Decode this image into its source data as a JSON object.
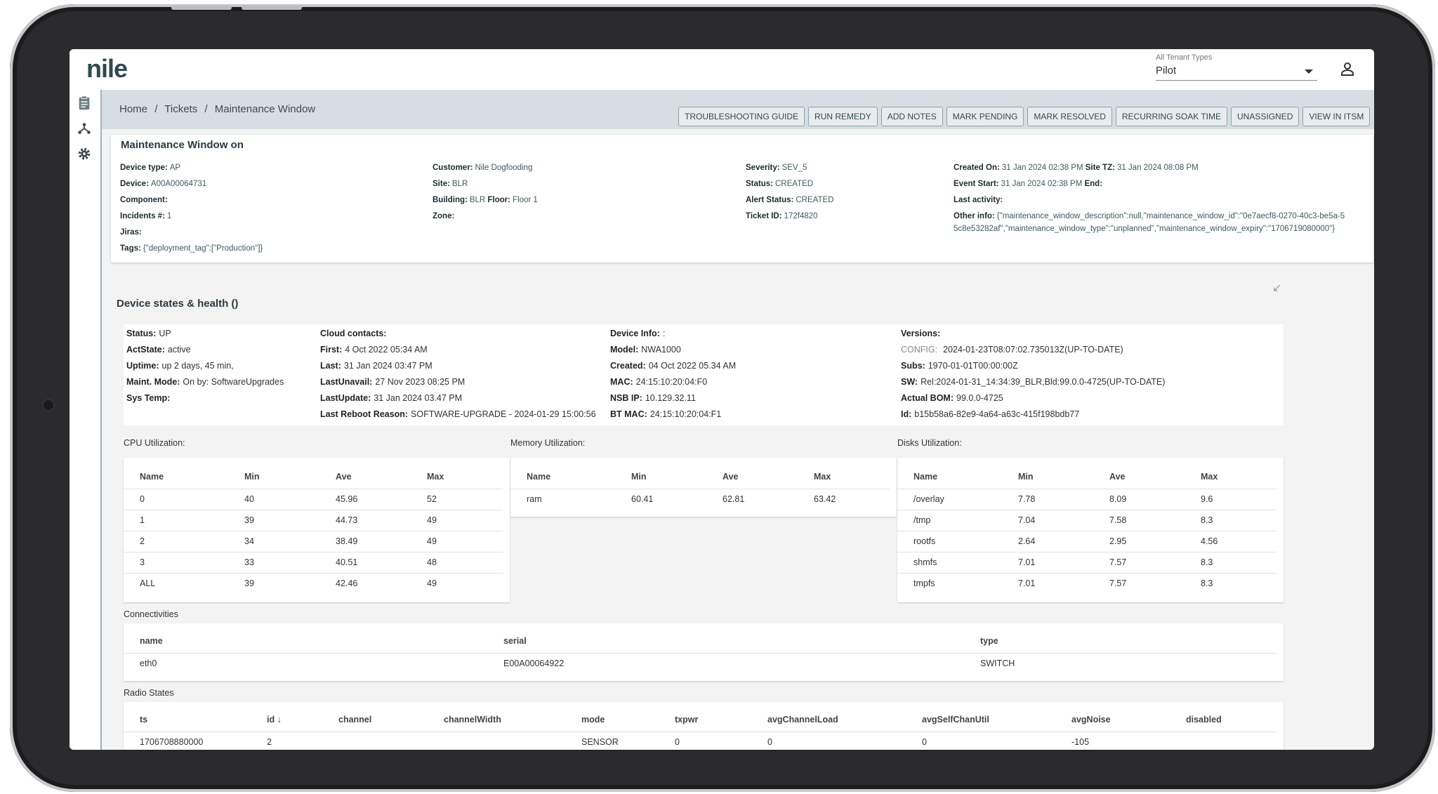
{
  "app": {
    "logo": "nile"
  },
  "tenant": {
    "label": "All Tenant Types",
    "value": "Pilot"
  },
  "breadcrumb": [
    "Home",
    "/",
    "Tickets",
    "/",
    "Maintenance Window"
  ],
  "actions": [
    "TROUBLESHOOTING GUIDE",
    "RUN REMEDY",
    "ADD NOTES",
    "MARK PENDING",
    "MARK RESOLVED",
    "RECURRING SOAK TIME",
    "UNASSIGNED",
    "VIEW IN ITSM"
  ],
  "ticket": {
    "title": "Maintenance Window on",
    "col1": [
      {
        "k": "Device type:",
        "v": "AP"
      },
      {
        "k": "Device:",
        "v": "A00A00064731"
      },
      {
        "k": "Component:",
        "v": ""
      },
      {
        "k": "Incidents #:",
        "v": "1"
      },
      {
        "k": "Jiras:",
        "v": ""
      },
      {
        "k": "Tags:",
        "v": "{\"deployment_tag\":[\"Production\"]}"
      }
    ],
    "col2": [
      {
        "k": "Customer:",
        "v": "Nile Dogfooding"
      },
      {
        "k": "Site:",
        "v": "BLR"
      },
      {
        "k": "Building:",
        "v": "BLR",
        "k2": "Floor:",
        "v2": "Floor 1"
      },
      {
        "k": "Zone:",
        "v": ""
      }
    ],
    "col3": [
      {
        "k": "Severity:",
        "v": "SEV_5"
      },
      {
        "k": "Status:",
        "v": "CREATED"
      },
      {
        "k": "Alert Status:",
        "v": "CREATED"
      },
      {
        "k": "Ticket ID:",
        "v": "172f4820"
      }
    ],
    "col4": [
      {
        "k": "Created On:",
        "v": "31 Jan 2024 02:38 PM",
        "k2": "Site TZ:",
        "v2": "31 Jan 2024 08:08 PM"
      },
      {
        "k": "Event Start:",
        "v": "31 Jan 2024 02:38 PM",
        "k2": "End:",
        "v2": ""
      },
      {
        "k": "Last activity:",
        "v": ""
      }
    ],
    "other_info_label": "Other info:",
    "other_info_line1": "{\"maintenance_window_description\":null,\"maintenance_window_id\":\"0e7aecf8-0270-40c3-be5a-5",
    "other_info_line2": "5c8e53282af\",\"maintenance_window_type\":\"unplanned\",\"maintenance_window_expiry\":\"1706719080000\"}"
  },
  "health": {
    "title": "Device states & health ()",
    "collapse_icon": "↙",
    "col1": [
      {
        "k": "Status:",
        "v": "UP"
      },
      {
        "k": "ActState:",
        "v": "active"
      },
      {
        "k": "Uptime:",
        "v": "up 2 days, 45 min,"
      },
      {
        "k": "Maint. Mode:",
        "v": "On by: SoftwareUpgrades"
      },
      {
        "k": "Sys Temp:",
        "v": ""
      }
    ],
    "col2": [
      {
        "k": "Cloud contacts:",
        "v": ""
      },
      {
        "k": "First:",
        "v": "4 Oct 2022 05:34 AM"
      },
      {
        "k": "Last:",
        "v": "31 Jan 2024 03:47 PM"
      },
      {
        "k": "LastUnavail:",
        "v": "27 Nov 2023 08:25 PM"
      },
      {
        "k": "LastUpdate:",
        "v": "31 Jan 2024 03.47 PM"
      },
      {
        "k": "Last Reboot Reason:",
        "v": "SOFTWARE-UPGRADE - 2024-01-29 15:00:56"
      }
    ],
    "col3": [
      {
        "k": "Device Info:",
        "v": ":"
      },
      {
        "k": "Model:",
        "v": "NWA1000"
      },
      {
        "k": "Created:",
        "v": "04 Oct 2022 05.34 AM"
      },
      {
        "k": "MAC:",
        "v": "24:15:10:20:04:F0"
      },
      {
        "k": "NSB IP:",
        "v": "10.129.32.11"
      },
      {
        "k": "BT MAC:",
        "v": "24:15:10:20:04:F1"
      }
    ],
    "col4": [
      {
        "k": "Versions:",
        "v": ""
      },
      {
        "k": "CONFIG:",
        "v": "2024-01-23T08:07:02.735013Z(UP-TO-DATE)",
        "muted": true
      },
      {
        "k": "Subs:",
        "v": "1970-01-01T00:00:00Z"
      },
      {
        "k": "SW:",
        "v": "Rel:2024-01-31_14:34:39_BLR,Bld:99.0.0-4725(UP-TO-DATE)"
      },
      {
        "k": "Actual BOM:",
        "v": "99.0.0-4725"
      },
      {
        "k": "Id:",
        "v": "b15b58a6-82e9-4a64-a63c-415f198bdb77"
      }
    ]
  },
  "cpu": {
    "label": "CPU Utilization:",
    "headers": [
      "Name",
      "Min",
      "Ave",
      "Max"
    ],
    "rows": [
      [
        "0",
        "40",
        "45.96",
        "52"
      ],
      [
        "1",
        "39",
        "44.73",
        "49"
      ],
      [
        "2",
        "34",
        "38.49",
        "49"
      ],
      [
        "3",
        "33",
        "40.51",
        "48"
      ],
      [
        "ALL",
        "39",
        "42.46",
        "49"
      ]
    ]
  },
  "memory": {
    "label": "Memory Utilization:",
    "headers": [
      "Name",
      "Min",
      "Ave",
      "Max"
    ],
    "rows": [
      [
        "ram",
        "60.41",
        "62.81",
        "63.42"
      ]
    ]
  },
  "disks": {
    "label": "Disks Utilization:",
    "headers": [
      "Name",
      "Min",
      "Ave",
      "Max"
    ],
    "rows": [
      [
        "/overlay",
        "7.78",
        "8.09",
        "9.6"
      ],
      [
        "/tmp",
        "7.04",
        "7.58",
        "8.3"
      ],
      [
        "rootfs",
        "2.64",
        "2.95",
        "4.56"
      ],
      [
        "shmfs",
        "7.01",
        "7.57",
        "8.3"
      ],
      [
        "tmpfs",
        "7.01",
        "7.57",
        "8.3"
      ]
    ]
  },
  "connectivities": {
    "label": "Connectivities",
    "headers": [
      "name",
      "serial",
      "type"
    ],
    "rows": [
      [
        "eth0",
        "E00A00064922",
        "SWITCH"
      ]
    ]
  },
  "radio": {
    "label": "Radio States",
    "headers": [
      "ts",
      "id",
      "channel",
      "channelWidth",
      "mode",
      "txpwr",
      "avgChannelLoad",
      "avgSelfChanUtil",
      "avgNoise",
      "disabled"
    ],
    "sort_icon": "↓",
    "rows": [
      [
        "1706708880000",
        "2",
        "",
        "",
        "SENSOR",
        "0",
        "0",
        "0",
        "-105",
        ""
      ]
    ]
  }
}
